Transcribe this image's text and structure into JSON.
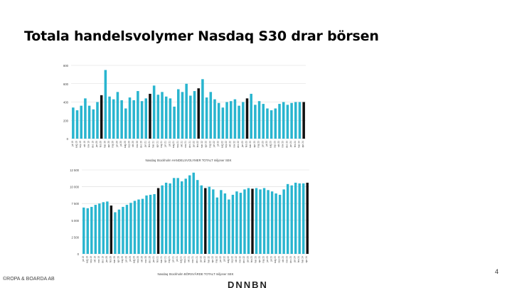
{
  "slide": {
    "title": "Totala handelsvolymer Nasdaq  S30 drar börsen",
    "footer": "©ROPA & BOARDA AB",
    "page_number": "4",
    "logo_text": "DNNBN"
  },
  "colors": {
    "bar": "#29b5cf",
    "bar_highlight": "#111111",
    "grid": "#d9d9d9",
    "text": "#444444"
  },
  "chart_data": [
    {
      "type": "bar",
      "title": "",
      "xlabel": "Nasdaq Stockholm HANDELSVOLYMER TOTALT miljoner SEK",
      "ylabel": "",
      "ylim": [
        0,
        800
      ],
      "yticks": [
        "0",
        "200",
        "400",
        "600",
        "800"
      ],
      "grid": true,
      "categories": [
        "jul 19",
        "aug 19",
        "sep 19",
        "okt 19",
        "nov 19",
        "dec 19",
        "jan 20",
        "feb 20",
        "mar 20",
        "apr 20",
        "maj 20",
        "jun 20",
        "jul 20",
        "aug 20",
        "sep 20",
        "okt 20",
        "nov 20",
        "dec 20",
        "jan 21",
        "feb 21",
        "mar 21",
        "apr 21",
        "maj 21",
        "jun 21",
        "jul 21",
        "aug 21",
        "sep 21",
        "okt 21",
        "nov 21",
        "dec 21",
        "jan 22",
        "feb 22",
        "mar 22",
        "apr 22",
        "maj 22",
        "jun 22",
        "jul 22",
        "aug 22",
        "sep 22",
        "okt 22",
        "nov 22",
        "dec 22",
        "jan 23",
        "feb 23",
        "mar 23",
        "apr 23",
        "maj 23",
        "jun 23",
        "jul 23",
        "aug 23",
        "sep 23",
        "okt 23",
        "nov 23",
        "dec 23",
        "jan 24",
        "feb 24",
        "mar 24",
        "apr 24"
      ],
      "values": [
        340,
        310,
        360,
        440,
        360,
        320,
        400,
        475,
        750,
        460,
        430,
        510,
        420,
        330,
        450,
        420,
        520,
        410,
        440,
        490,
        580,
        480,
        510,
        460,
        440,
        350,
        540,
        510,
        600,
        470,
        520,
        550,
        650,
        450,
        510,
        430,
        390,
        340,
        400,
        410,
        430,
        360,
        400,
        440,
        490,
        370,
        410,
        380,
        330,
        310,
        330,
        380,
        400,
        370,
        390,
        400,
        400,
        400
      ],
      "highlight_indices": [
        7,
        19,
        31,
        43,
        57
      ]
    },
    {
      "type": "bar",
      "title": "",
      "xlabel": "Nasdaq Stockholm BÖRSVÄRDE TOTALT miljoner SEK",
      "ylabel": "",
      "ylim": [
        0,
        12500
      ],
      "yticks": [
        "0",
        "2 500",
        "5 000",
        "7 500",
        "10 000",
        "12 500"
      ],
      "grid": true,
      "categories": [
        "jul 19",
        "aug 19",
        "sep 19",
        "okt 19",
        "nov 19",
        "dec 19",
        "jan 20",
        "feb 20",
        "mar 20",
        "apr 20",
        "maj 20",
        "jun 20",
        "jul 20",
        "aug 20",
        "sep 20",
        "okt 20",
        "nov 20",
        "dec 20",
        "jan 21",
        "feb 21",
        "mar 21",
        "apr 21",
        "maj 21",
        "jun 21",
        "jul 21",
        "aug 21",
        "sep 21",
        "okt 21",
        "nov 21",
        "dec 21",
        "jan 22",
        "feb 22",
        "mar 22",
        "apr 22",
        "maj 22",
        "jun 22",
        "jul 22",
        "aug 22",
        "sep 22",
        "okt 22",
        "nov 22",
        "dec 22",
        "jan 23",
        "feb 23",
        "mar 23",
        "apr 23",
        "maj 23",
        "jun 23",
        "jul 23",
        "aug 23",
        "sep 23",
        "okt 23",
        "nov 23",
        "dec 23",
        "jan 24",
        "feb 24",
        "mar 24",
        "apr 24"
      ],
      "values": [
        6900,
        6800,
        7000,
        7300,
        7500,
        7700,
        7800,
        7200,
        6200,
        6600,
        7000,
        7300,
        7600,
        7900,
        8100,
        8200,
        8700,
        8800,
        8900,
        9800,
        10200,
        10600,
        10500,
        11300,
        11300,
        10800,
        11200,
        11700,
        12100,
        11000,
        10200,
        9800,
        10000,
        9600,
        8400,
        9500,
        9000,
        8100,
        8800,
        9300,
        9100,
        9600,
        9800,
        9700,
        9800,
        9600,
        9800,
        9500,
        9300,
        9000,
        8800,
        9600,
        10400,
        10200,
        10600,
        10500,
        10500,
        10600
      ],
      "highlight_indices": [
        7,
        19,
        31,
        43,
        57
      ]
    }
  ]
}
